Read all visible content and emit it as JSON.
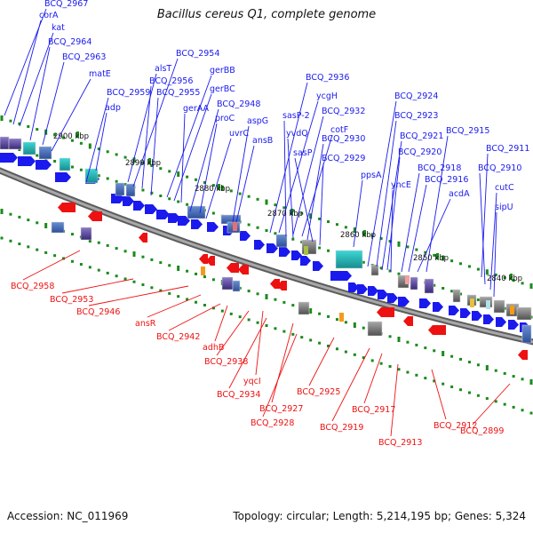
{
  "title": "Bacillus cereus Q1, complete genome",
  "footer": {
    "accession": "Accession: NC_011969",
    "summary": "Topology: circular; Length: 5,214,195 bp; Genes: 5,324"
  },
  "colors": {
    "forward_gene": "#1a1aee",
    "reverse_gene": "#ee1111",
    "backbone": "#888888",
    "tick": "#1a8a1a"
  },
  "kbp_labels": [
    "2900 kbp",
    "2890 kbp",
    "2880 kbp",
    "2870 kbp",
    "2860 kbp",
    "2850 kbp",
    "2840 kbp"
  ],
  "forward_labels": [
    "BCQ_2967",
    "corA",
    "kat",
    "BCQ_2964",
    "BCQ_2963",
    "matE",
    "BCQ_2959",
    "adp",
    "alsT",
    "BCQ_2954",
    "BCQ_2956",
    "BCQ_2955",
    "gerBB",
    "gerBC",
    "gerAA",
    "BCQ_2948",
    "proC",
    "uvrC",
    "aspG",
    "ansB",
    "BCQ_2936",
    "ycgH",
    "sasP-2",
    "BCQ_2932",
    "yvdQ",
    "cotF",
    "BCQ_2930",
    "sasP",
    "BCQ_2929",
    "ppsA",
    "BCQ_2924",
    "BCQ_2923",
    "BCQ_2921",
    "BCQ_2920",
    "yncE",
    "BCQ_2918",
    "BCQ_2916",
    "acdA",
    "BCQ_2915",
    "BCQ_2911",
    "BCQ_2910",
    "cutC",
    "sipU"
  ],
  "reverse_labels": [
    "BCQ_2958",
    "BCQ_2953",
    "BCQ_2946",
    "ansR",
    "BCQ_2942",
    "adhB",
    "BCQ_2938",
    "yqcI",
    "BCQ_2934",
    "BCQ_2927",
    "BCQ_2928",
    "BCQ_2925",
    "BCQ_2919",
    "BCQ_2917",
    "BCQ_2913",
    "BCQ_2912",
    "BCQ_2899"
  ]
}
